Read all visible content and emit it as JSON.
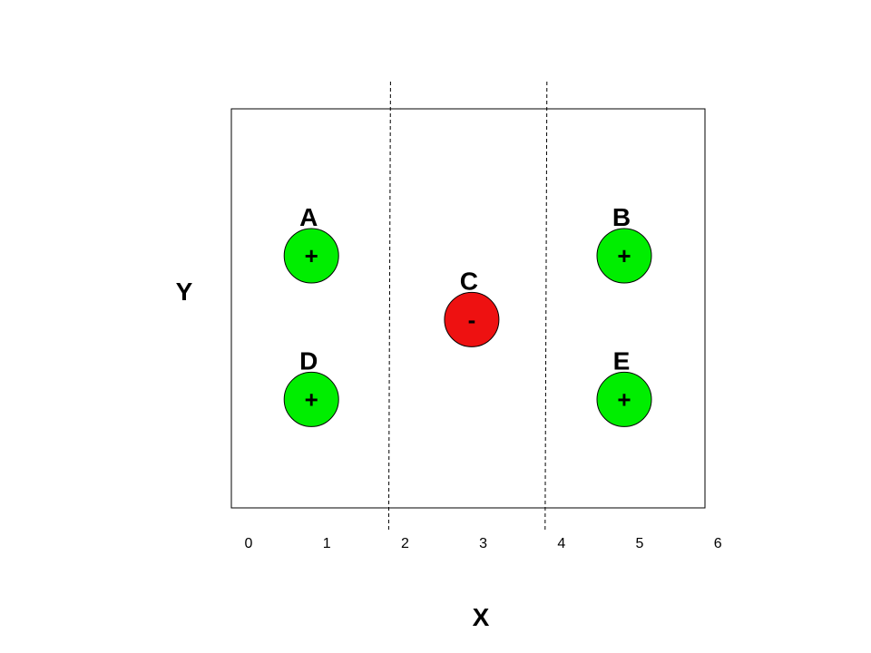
{
  "axes": {
    "x_title": "X",
    "y_title": "Y",
    "x_ticks": [
      "0",
      "1",
      "2",
      "3",
      "4",
      "5",
      "6"
    ]
  },
  "boundaries": [
    {
      "x": 2
    },
    {
      "x": 4
    }
  ],
  "points": [
    {
      "label": "A",
      "sign": "+",
      "x": 1.0,
      "y": 3.0,
      "class": "positive"
    },
    {
      "label": "B",
      "sign": "+",
      "x": 5.0,
      "y": 3.0,
      "class": "positive"
    },
    {
      "label": "C",
      "sign": "-",
      "x": 3.05,
      "y": 2.2,
      "class": "negative"
    },
    {
      "label": "D",
      "sign": "+",
      "x": 1.0,
      "y": 1.2,
      "class": "positive"
    },
    {
      "label": "E",
      "sign": "+",
      "x": 5.0,
      "y": 1.2,
      "class": "positive"
    }
  ],
  "colors": {
    "positive": "#00ee00",
    "negative": "#ee1111",
    "outline": "#000000",
    "frame": "#000000",
    "boundary": "#000000"
  }
}
